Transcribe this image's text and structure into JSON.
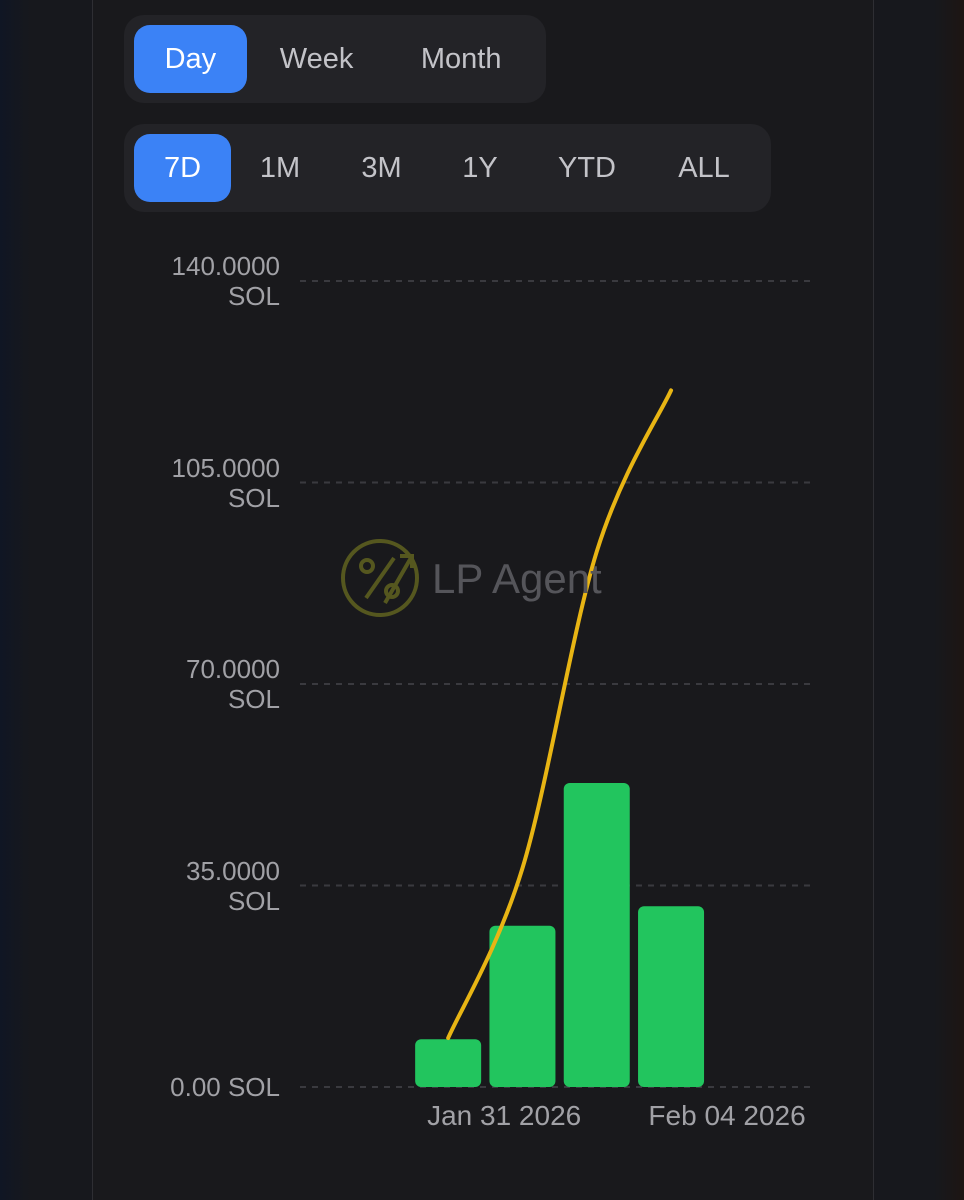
{
  "tabs": {
    "period": [
      "Day",
      "Week",
      "Month"
    ],
    "range": [
      "7D",
      "1M",
      "3M",
      "1Y",
      "YTD",
      "ALL"
    ]
  },
  "watermark": "LP Agent",
  "chart_data": {
    "type": "bar",
    "categories": [
      "Jan 31 2026",
      null,
      null,
      "Feb 04 2026"
    ],
    "series": [
      {
        "type": "bar",
        "color": "#22c55e",
        "values": [
          8.3,
          28,
          52.8,
          31.4
        ]
      },
      {
        "type": "line",
        "color": "#e8b514",
        "values": [
          8.5,
          38,
          93,
          121
        ]
      }
    ],
    "ylim": [
      0,
      140
    ],
    "yticks": [
      {
        "value": 0,
        "label": "0.00 SOL"
      },
      {
        "value": 35,
        "label": "35.0000 SOL"
      },
      {
        "value": 70,
        "label": "70.0000 SOL"
      },
      {
        "value": 105,
        "label": "105.0000 SOL"
      },
      {
        "value": 140,
        "label": "140.0000 SOL"
      }
    ],
    "grid": true
  }
}
